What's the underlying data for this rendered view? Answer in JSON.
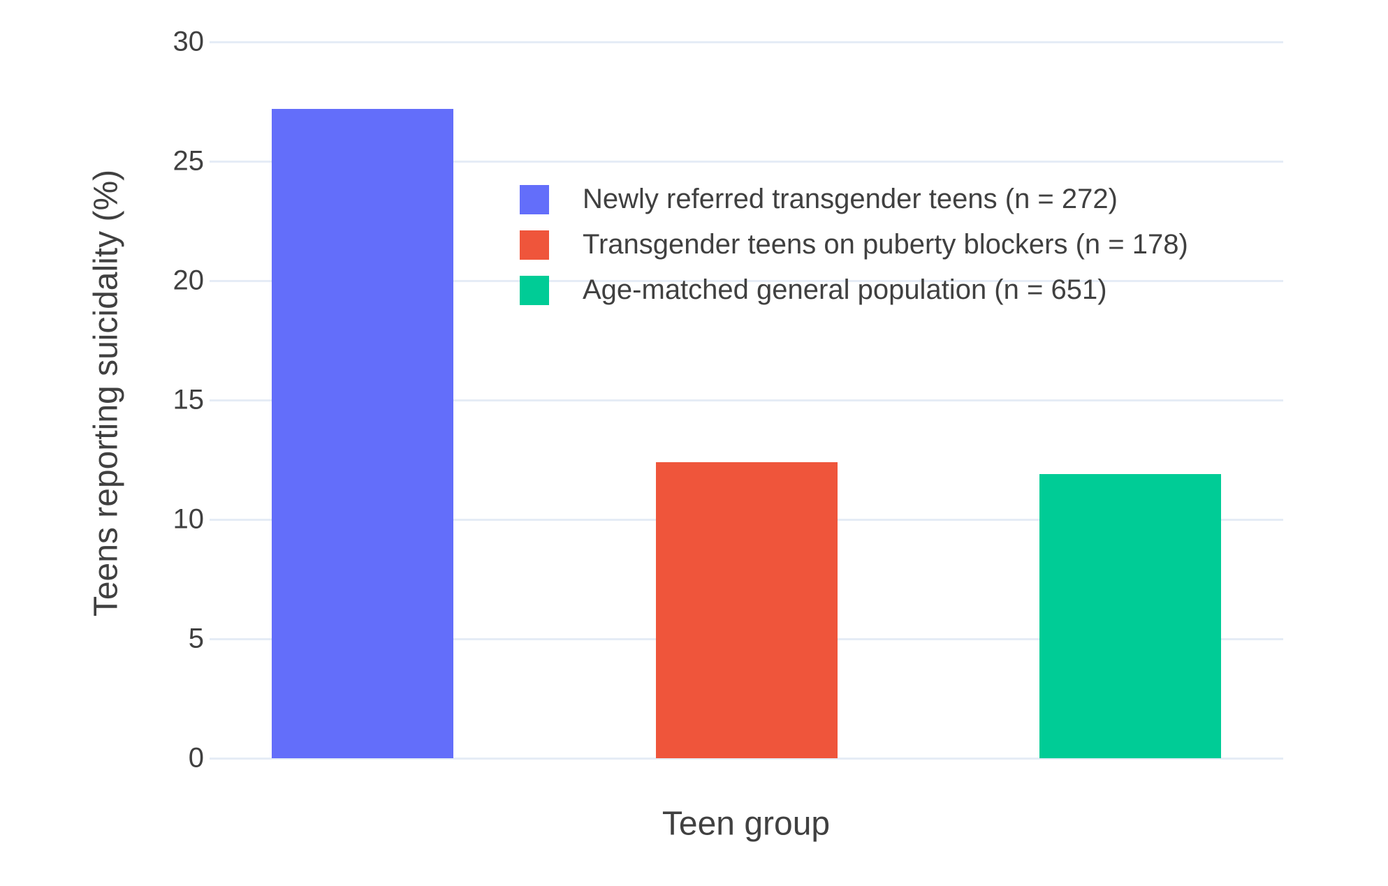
{
  "chart_data": {
    "type": "bar",
    "title": "",
    "xlabel": "Teen group",
    "ylabel": "Teens reporting suicidality (%)",
    "ylim": [
      0,
      30
    ],
    "yticks": [
      0,
      5,
      10,
      15,
      20,
      25,
      30
    ],
    "grid": true,
    "legend_position": "inside-top-right",
    "background_color": "#ffffff",
    "gridline_color": "#E5ECF6",
    "text_color": "#404040",
    "series": [
      {
        "name": "Newly referred transgender teens (n = 272)",
        "color": "#636EFA",
        "value": 27.2
      },
      {
        "name": "Transgender teens on puberty blockers (n = 178)",
        "color": "#EF553B",
        "value": 12.4
      },
      {
        "name": "Age-matched general population (n = 651)",
        "color": "#00CC96",
        "value": 11.9
      }
    ]
  }
}
